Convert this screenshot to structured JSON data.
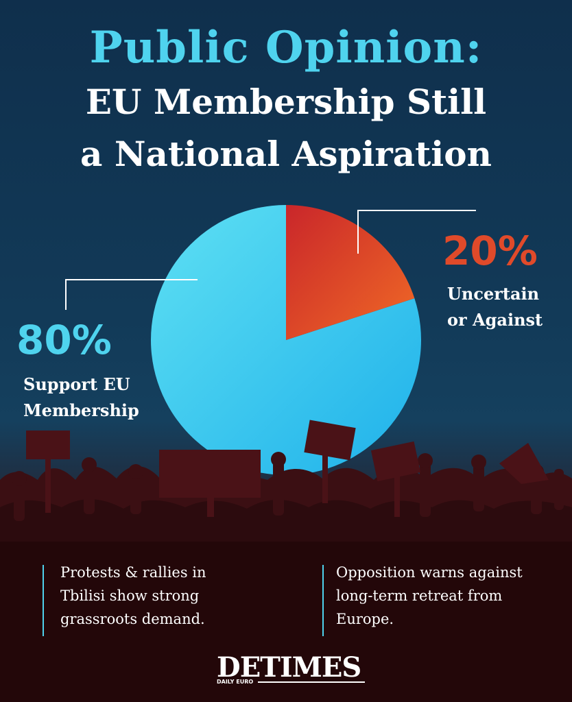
{
  "title": {
    "line1": "Public Opinion:",
    "line2": "EU Membership Still",
    "line3": "a National Aspiration"
  },
  "chart_data": {
    "type": "pie",
    "slices": [
      {
        "label": "Support EU Membership",
        "value": 80,
        "display": "80%",
        "color": "#36c3ef"
      },
      {
        "label": "Uncertain or Against",
        "value": 20,
        "display": "20%",
        "color": "#e0532a"
      }
    ]
  },
  "labels": {
    "support_pct": "80%",
    "support_line1": "Support EU",
    "support_line2": "Membership",
    "against_pct": "20%",
    "against_line1": "Uncertain",
    "against_line2": "or Against"
  },
  "notes": {
    "left": [
      "Protests & rallies in",
      "Tbilisi show strong",
      "grassroots demand."
    ],
    "right": [
      "Opposition warns against",
      "long-term retreat from",
      "Europe."
    ]
  },
  "logo": {
    "main": "DETIMES",
    "sub": "DAILY EURO"
  },
  "colors": {
    "accent": "#4fd3ee",
    "against": "#e04a2a",
    "background": "#123a58"
  }
}
